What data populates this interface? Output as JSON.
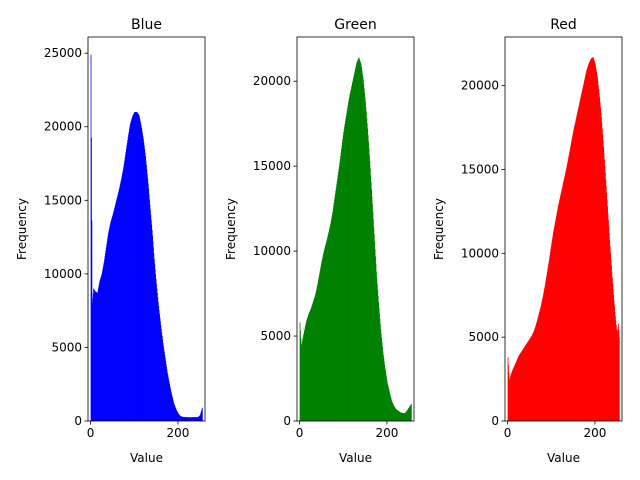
{
  "chart_data": [
    {
      "type": "bar",
      "title": "Blue",
      "xlabel": "Value",
      "ylabel": "Frequency",
      "color": "#0000ff",
      "xlim": [
        -6,
        262
      ],
      "ylim": [
        0,
        26100
      ],
      "xticks": [
        0,
        200
      ],
      "yticks": [
        0,
        5000,
        10000,
        15000,
        20000,
        25000
      ],
      "grid": false,
      "series": [
        {
          "points": [
            [
              0,
              24900
            ],
            [
              3,
              8000
            ],
            [
              6,
              9000
            ],
            [
              10,
              8800
            ],
            [
              15,
              8700
            ],
            [
              20,
              9500
            ],
            [
              25,
              10000
            ],
            [
              30,
              10800
            ],
            [
              35,
              11800
            ],
            [
              40,
              12800
            ],
            [
              45,
              13500
            ],
            [
              50,
              14000
            ],
            [
              55,
              14600
            ],
            [
              60,
              15200
            ],
            [
              65,
              15800
            ],
            [
              70,
              16500
            ],
            [
              75,
              17300
            ],
            [
              80,
              18300
            ],
            [
              85,
              19300
            ],
            [
              90,
              20200
            ],
            [
              95,
              20700
            ],
            [
              100,
              21000
            ],
            [
              105,
              21000
            ],
            [
              110,
              20800
            ],
            [
              115,
              20100
            ],
            [
              120,
              19200
            ],
            [
              125,
              18000
            ],
            [
              130,
              16500
            ],
            [
              135,
              14700
            ],
            [
              140,
              13000
            ],
            [
              145,
              11000
            ],
            [
              150,
              9300
            ],
            [
              155,
              7800
            ],
            [
              160,
              6500
            ],
            [
              165,
              5300
            ],
            [
              170,
              4300
            ],
            [
              175,
              3300
            ],
            [
              180,
              2500
            ],
            [
              185,
              1800
            ],
            [
              190,
              1200
            ],
            [
              195,
              800
            ],
            [
              200,
              500
            ],
            [
              205,
              330
            ],
            [
              210,
              280
            ],
            [
              220,
              250
            ],
            [
              230,
              250
            ],
            [
              240,
              260
            ],
            [
              245,
              250
            ],
            [
              250,
              400
            ],
            [
              255,
              900
            ]
          ]
        }
      ]
    },
    {
      "type": "bar",
      "title": "Green",
      "xlabel": "Value",
      "ylabel": "Frequency",
      "color": "#008000",
      "xlim": [
        -6,
        262
      ],
      "ylim": [
        0,
        22600
      ],
      "xticks": [
        0,
        200
      ],
      "yticks": [
        0,
        5000,
        10000,
        15000,
        20000
      ],
      "grid": false,
      "series": [
        {
          "points": [
            [
              0,
              5800
            ],
            [
              3,
              4400
            ],
            [
              6,
              4800
            ],
            [
              10,
              5300
            ],
            [
              15,
              5900
            ],
            [
              20,
              6300
            ],
            [
              25,
              6600
            ],
            [
              30,
              7000
            ],
            [
              35,
              7400
            ],
            [
              40,
              8000
            ],
            [
              45,
              8700
            ],
            [
              50,
              9400
            ],
            [
              55,
              10000
            ],
            [
              60,
              10500
            ],
            [
              65,
              11000
            ],
            [
              70,
              11600
            ],
            [
              75,
              12300
            ],
            [
              80,
              13200
            ],
            [
              85,
              14100
            ],
            [
              90,
              15000
            ],
            [
              95,
              16000
            ],
            [
              100,
              17000
            ],
            [
              105,
              17800
            ],
            [
              110,
              18600
            ],
            [
              115,
              19300
            ],
            [
              120,
              19900
            ],
            [
              125,
              20500
            ],
            [
              130,
              21100
            ],
            [
              135,
              21400
            ],
            [
              140,
              21000
            ],
            [
              145,
              20100
            ],
            [
              150,
              18800
            ],
            [
              155,
              17200
            ],
            [
              160,
              15300
            ],
            [
              165,
              13200
            ],
            [
              170,
              11000
            ],
            [
              175,
              8800
            ],
            [
              180,
              7000
            ],
            [
              185,
              5400
            ],
            [
              190,
              4100
            ],
            [
              195,
              3100
            ],
            [
              200,
              2300
            ],
            [
              205,
              1700
            ],
            [
              210,
              1200
            ],
            [
              215,
              900
            ],
            [
              220,
              700
            ],
            [
              230,
              500
            ],
            [
              240,
              450
            ],
            [
              245,
              600
            ],
            [
              250,
              800
            ],
            [
              255,
              1000
            ]
          ]
        }
      ]
    },
    {
      "type": "bar",
      "title": "Red",
      "xlabel": "Value",
      "ylabel": "Frequency",
      "color": "#ff0000",
      "xlim": [
        -6,
        262
      ],
      "ylim": [
        0,
        22900
      ],
      "xticks": [
        0,
        200
      ],
      "yticks": [
        0,
        5000,
        10000,
        15000,
        20000
      ],
      "grid": false,
      "series": [
        {
          "points": [
            [
              0,
              3800
            ],
            [
              3,
              2400
            ],
            [
              6,
              2700
            ],
            [
              10,
              3000
            ],
            [
              15,
              3300
            ],
            [
              20,
              3600
            ],
            [
              25,
              3900
            ],
            [
              30,
              4100
            ],
            [
              35,
              4300
            ],
            [
              40,
              4500
            ],
            [
              45,
              4700
            ],
            [
              50,
              4900
            ],
            [
              55,
              5100
            ],
            [
              60,
              5400
            ],
            [
              65,
              5800
            ],
            [
              70,
              6300
            ],
            [
              75,
              6800
            ],
            [
              80,
              7400
            ],
            [
              85,
              8100
            ],
            [
              90,
              8900
            ],
            [
              95,
              9700
            ],
            [
              100,
              10600
            ],
            [
              105,
              11400
            ],
            [
              110,
              12100
            ],
            [
              115,
              12800
            ],
            [
              120,
              13400
            ],
            [
              125,
              14000
            ],
            [
              130,
              14600
            ],
            [
              135,
              15200
            ],
            [
              140,
              15900
            ],
            [
              145,
              16600
            ],
            [
              150,
              17300
            ],
            [
              155,
              17900
            ],
            [
              160,
              18500
            ],
            [
              165,
              19100
            ],
            [
              170,
              19700
            ],
            [
              175,
              20300
            ],
            [
              180,
              20900
            ],
            [
              185,
              21300
            ],
            [
              190,
              21600
            ],
            [
              195,
              21700
            ],
            [
              200,
              21300
            ],
            [
              205,
              20500
            ],
            [
              210,
              19300
            ],
            [
              215,
              17800
            ],
            [
              220,
              16000
            ],
            [
              225,
              14000
            ],
            [
              230,
              12000
            ],
            [
              235,
              10000
            ],
            [
              240,
              8200
            ],
            [
              245,
              6500
            ],
            [
              250,
              5200
            ],
            [
              253,
              5800
            ],
            [
              255,
              5000
            ]
          ]
        }
      ]
    }
  ]
}
